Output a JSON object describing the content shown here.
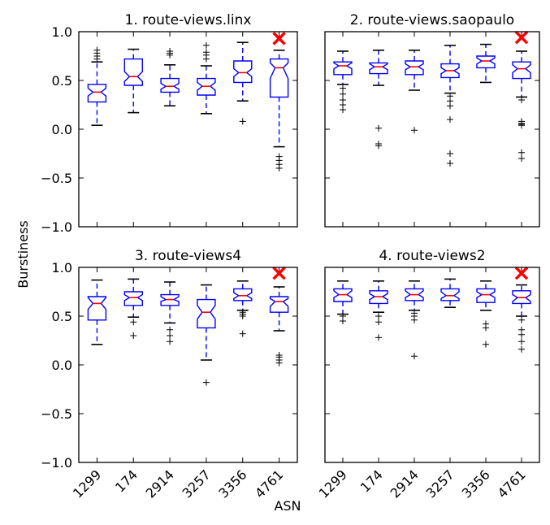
{
  "figure": {
    "ylabel": "Burstiness",
    "xlabel": "ASN"
  },
  "chart_data": [
    {
      "type": "box",
      "title": "1. route-views.linx",
      "categories": [
        "1299",
        "174",
        "2914",
        "3257",
        "3356",
        "4761"
      ],
      "ylim": [
        -1.0,
        1.0
      ],
      "yticks": [
        "1.0",
        "0.5",
        "0.0",
        "−0.5",
        "−1.0"
      ],
      "boxes": [
        {
          "whisker_low": 0.04,
          "q1": 0.28,
          "median": 0.38,
          "q3": 0.46,
          "whisker_high": 0.69,
          "notch_low": 0.34,
          "notch_high": 0.42,
          "outliers": [
            0.72,
            0.75,
            0.78,
            0.81
          ]
        },
        {
          "whisker_low": 0.17,
          "q1": 0.45,
          "median": 0.54,
          "q3": 0.72,
          "whisker_high": 0.82,
          "notch_low": 0.49,
          "notch_high": 0.59,
          "outliers": []
        },
        {
          "whisker_low": 0.24,
          "q1": 0.38,
          "median": 0.44,
          "q3": 0.52,
          "whisker_high": 0.66,
          "notch_low": 0.41,
          "notch_high": 0.47,
          "outliers": [
            0.76,
            0.78,
            0.8
          ]
        },
        {
          "whisker_low": 0.16,
          "q1": 0.35,
          "median": 0.44,
          "q3": 0.52,
          "whisker_high": 0.65,
          "notch_low": 0.4,
          "notch_high": 0.48,
          "outliers": [
            0.72,
            0.76,
            0.79,
            0.86
          ]
        },
        {
          "whisker_low": 0.29,
          "q1": 0.48,
          "median": 0.58,
          "q3": 0.7,
          "whisker_high": 0.89,
          "notch_low": 0.54,
          "notch_high": 0.62,
          "outliers": [
            0.08
          ]
        },
        {
          "whisker_low": -0.18,
          "q1": 0.33,
          "median": 0.63,
          "q3": 0.72,
          "whisker_high": 0.81,
          "notch_low": 0.52,
          "notch_high": 0.68,
          "outliers": [
            -0.28,
            -0.32,
            -0.36,
            -0.4
          ],
          "marker": 0.93
        }
      ]
    },
    {
      "type": "box",
      "title": "2. route-views.saopaulo",
      "categories": [
        "1299",
        "174",
        "2914",
        "3257",
        "3356",
        "4761"
      ],
      "ylim": [
        -1.0,
        1.0
      ],
      "yticks": [],
      "boxes": [
        {
          "whisker_low": 0.46,
          "q1": 0.56,
          "median": 0.65,
          "q3": 0.69,
          "whisker_high": 0.8,
          "notch_low": 0.62,
          "notch_high": 0.68,
          "outliers": [
            0.2,
            0.25,
            0.3,
            0.36,
            0.42
          ]
        },
        {
          "whisker_low": 0.45,
          "q1": 0.57,
          "median": 0.64,
          "q3": 0.68,
          "whisker_high": 0.81,
          "notch_low": 0.61,
          "notch_high": 0.67,
          "outliers": [
            0.01,
            -0.15,
            -0.17
          ]
        },
        {
          "whisker_low": 0.4,
          "q1": 0.56,
          "median": 0.64,
          "q3": 0.7,
          "whisker_high": 0.81,
          "notch_low": 0.61,
          "notch_high": 0.67,
          "outliers": [
            -0.01
          ]
        },
        {
          "whisker_low": 0.37,
          "q1": 0.53,
          "median": 0.6,
          "q3": 0.67,
          "whisker_high": 0.86,
          "notch_low": 0.57,
          "notch_high": 0.63,
          "outliers": [
            0.34,
            0.29,
            0.24,
            0.1,
            -0.25,
            -0.35
          ]
        },
        {
          "whisker_low": 0.48,
          "q1": 0.63,
          "median": 0.7,
          "q3": 0.75,
          "whisker_high": 0.87,
          "notch_low": 0.67,
          "notch_high": 0.73,
          "outliers": []
        },
        {
          "whisker_low": 0.33,
          "q1": 0.52,
          "median": 0.62,
          "q3": 0.69,
          "whisker_high": 0.8,
          "notch_low": 0.58,
          "notch_high": 0.66,
          "outliers": [
            0.3,
            0.08,
            0.06,
            0.05,
            0.04,
            -0.24,
            -0.3
          ],
          "marker": 0.94
        }
      ]
    },
    {
      "type": "box",
      "title": "3. route-views4",
      "categories": [
        "1299",
        "174",
        "2914",
        "3257",
        "3356",
        "4761"
      ],
      "ylim": [
        -1.0,
        1.0
      ],
      "yticks": [
        "1.0",
        "0.5",
        "0.0",
        "−0.5",
        "−1.0"
      ],
      "boxes": [
        {
          "whisker_low": 0.21,
          "q1": 0.46,
          "median": 0.63,
          "q3": 0.7,
          "whisker_high": 0.87,
          "notch_low": 0.57,
          "notch_high": 0.69,
          "outliers": []
        },
        {
          "whisker_low": 0.49,
          "q1": 0.61,
          "median": 0.69,
          "q3": 0.75,
          "whisker_high": 0.88,
          "notch_low": 0.66,
          "notch_high": 0.72,
          "outliers": [
            0.3,
            0.44
          ]
        },
        {
          "whisker_low": 0.43,
          "q1": 0.61,
          "median": 0.67,
          "q3": 0.72,
          "whisker_high": 0.85,
          "notch_low": 0.65,
          "notch_high": 0.7,
          "outliers": [
            0.24,
            0.3,
            0.36
          ]
        },
        {
          "whisker_low": 0.05,
          "q1": 0.38,
          "median": 0.54,
          "q3": 0.67,
          "whisker_high": 0.82,
          "notch_low": 0.47,
          "notch_high": 0.61,
          "outliers": [
            -0.18
          ]
        },
        {
          "whisker_low": 0.56,
          "q1": 0.66,
          "median": 0.71,
          "q3": 0.78,
          "whisker_high": 0.86,
          "notch_low": 0.68,
          "notch_high": 0.74,
          "outliers": [
            0.32,
            0.5,
            0.52,
            0.54
          ]
        },
        {
          "whisker_low": 0.35,
          "q1": 0.54,
          "median": 0.65,
          "q3": 0.7,
          "whisker_high": 0.8,
          "notch_low": 0.6,
          "notch_high": 0.68,
          "outliers": [
            0.02,
            0.05,
            0.08,
            0.1
          ],
          "marker": 0.94
        }
      ]
    },
    {
      "type": "box",
      "title": "4. route-views2",
      "categories": [
        "1299",
        "174",
        "2914",
        "3257",
        "3356",
        "4761"
      ],
      "ylim": [
        -1.0,
        1.0
      ],
      "yticks": [],
      "boxes": [
        {
          "whisker_low": 0.52,
          "q1": 0.65,
          "median": 0.72,
          "q3": 0.78,
          "whisker_high": 0.86,
          "notch_low": 0.69,
          "notch_high": 0.76,
          "outliers": [
            0.45,
            0.5
          ]
        },
        {
          "whisker_low": 0.54,
          "q1": 0.63,
          "median": 0.7,
          "q3": 0.76,
          "whisker_high": 0.86,
          "notch_low": 0.67,
          "notch_high": 0.73,
          "outliers": [
            0.28,
            0.44,
            0.5
          ]
        },
        {
          "whisker_low": 0.56,
          "q1": 0.66,
          "median": 0.72,
          "q3": 0.78,
          "whisker_high": 0.86,
          "notch_low": 0.69,
          "notch_high": 0.76,
          "outliers": [
            0.09,
            0.46,
            0.5,
            0.53
          ]
        },
        {
          "whisker_low": 0.59,
          "q1": 0.66,
          "median": 0.71,
          "q3": 0.78,
          "whisker_high": 0.88,
          "notch_low": 0.68,
          "notch_high": 0.75,
          "outliers": []
        },
        {
          "whisker_low": 0.56,
          "q1": 0.64,
          "median": 0.72,
          "q3": 0.78,
          "whisker_high": 0.86,
          "notch_low": 0.69,
          "notch_high": 0.75,
          "outliers": [
            0.21,
            0.38,
            0.42
          ]
        },
        {
          "whisker_low": 0.5,
          "q1": 0.63,
          "median": 0.69,
          "q3": 0.76,
          "whisker_high": 0.82,
          "notch_low": 0.65,
          "notch_high": 0.72,
          "outliers": [
            0.16,
            0.24,
            0.31,
            0.36,
            0.46
          ],
          "marker": 0.94
        }
      ]
    }
  ],
  "colors": {
    "box": "#0000ff",
    "median": "#ff0000",
    "marker": "#ff0000",
    "whisker": "#000000",
    "outlier": "#000000"
  }
}
